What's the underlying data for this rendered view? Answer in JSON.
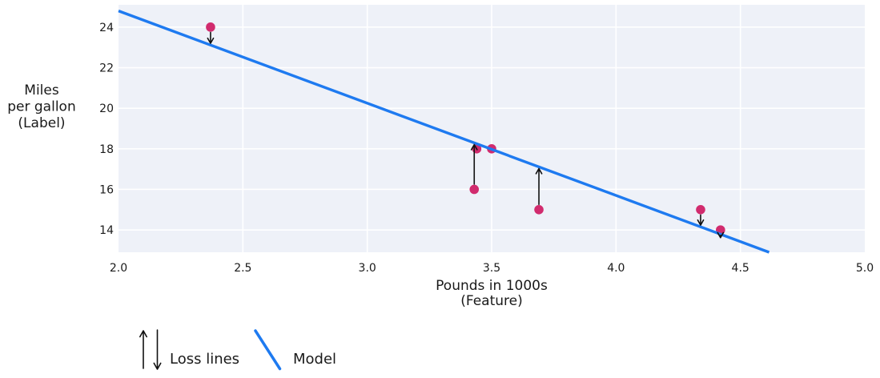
{
  "chart_data": {
    "type": "scatter",
    "title": "",
    "xlabel": "Pounds in 1000s (Feature)",
    "ylabel": "Miles per gallon (Label)",
    "xlabel_lines": [
      "Pounds in 1000s",
      "(Feature)"
    ],
    "ylabel_lines": [
      "Miles",
      "per gallon",
      "(Label)"
    ],
    "xticks": [
      "2.0",
      "2.5",
      "3.0",
      "3.5",
      "4.0",
      "4.5",
      "5.0"
    ],
    "yticks": [
      "14",
      "16",
      "18",
      "20",
      "22",
      "24"
    ],
    "xlim": [
      2.0,
      5.0
    ],
    "ylim": [
      12.9,
      25.1
    ],
    "grid": true,
    "points": [
      {
        "x": 2.37,
        "y": 24,
        "loss_arrow": true
      },
      {
        "x": 3.44,
        "y": 18,
        "loss_arrow": false
      },
      {
        "x": 3.5,
        "y": 18,
        "loss_arrow": false
      },
      {
        "x": 3.43,
        "y": 16,
        "loss_arrow": true
      },
      {
        "x": 3.69,
        "y": 15,
        "loss_arrow": true
      },
      {
        "x": 4.34,
        "y": 15,
        "loss_arrow": true
      },
      {
        "x": 4.42,
        "y": 14,
        "loss_arrow": true
      }
    ],
    "model_line": {
      "slope": -4.55,
      "intercept": 33.9
    },
    "legend": {
      "loss_label": "Loss lines",
      "model_label": "Model",
      "position": "bottom-left"
    },
    "colors": {
      "model": "#1e7af0",
      "point": "#d12b6e",
      "plot_bg": "#eef1f8",
      "grid": "#ffffff",
      "arrow": "#111111",
      "text": "#1a1a1a"
    }
  }
}
